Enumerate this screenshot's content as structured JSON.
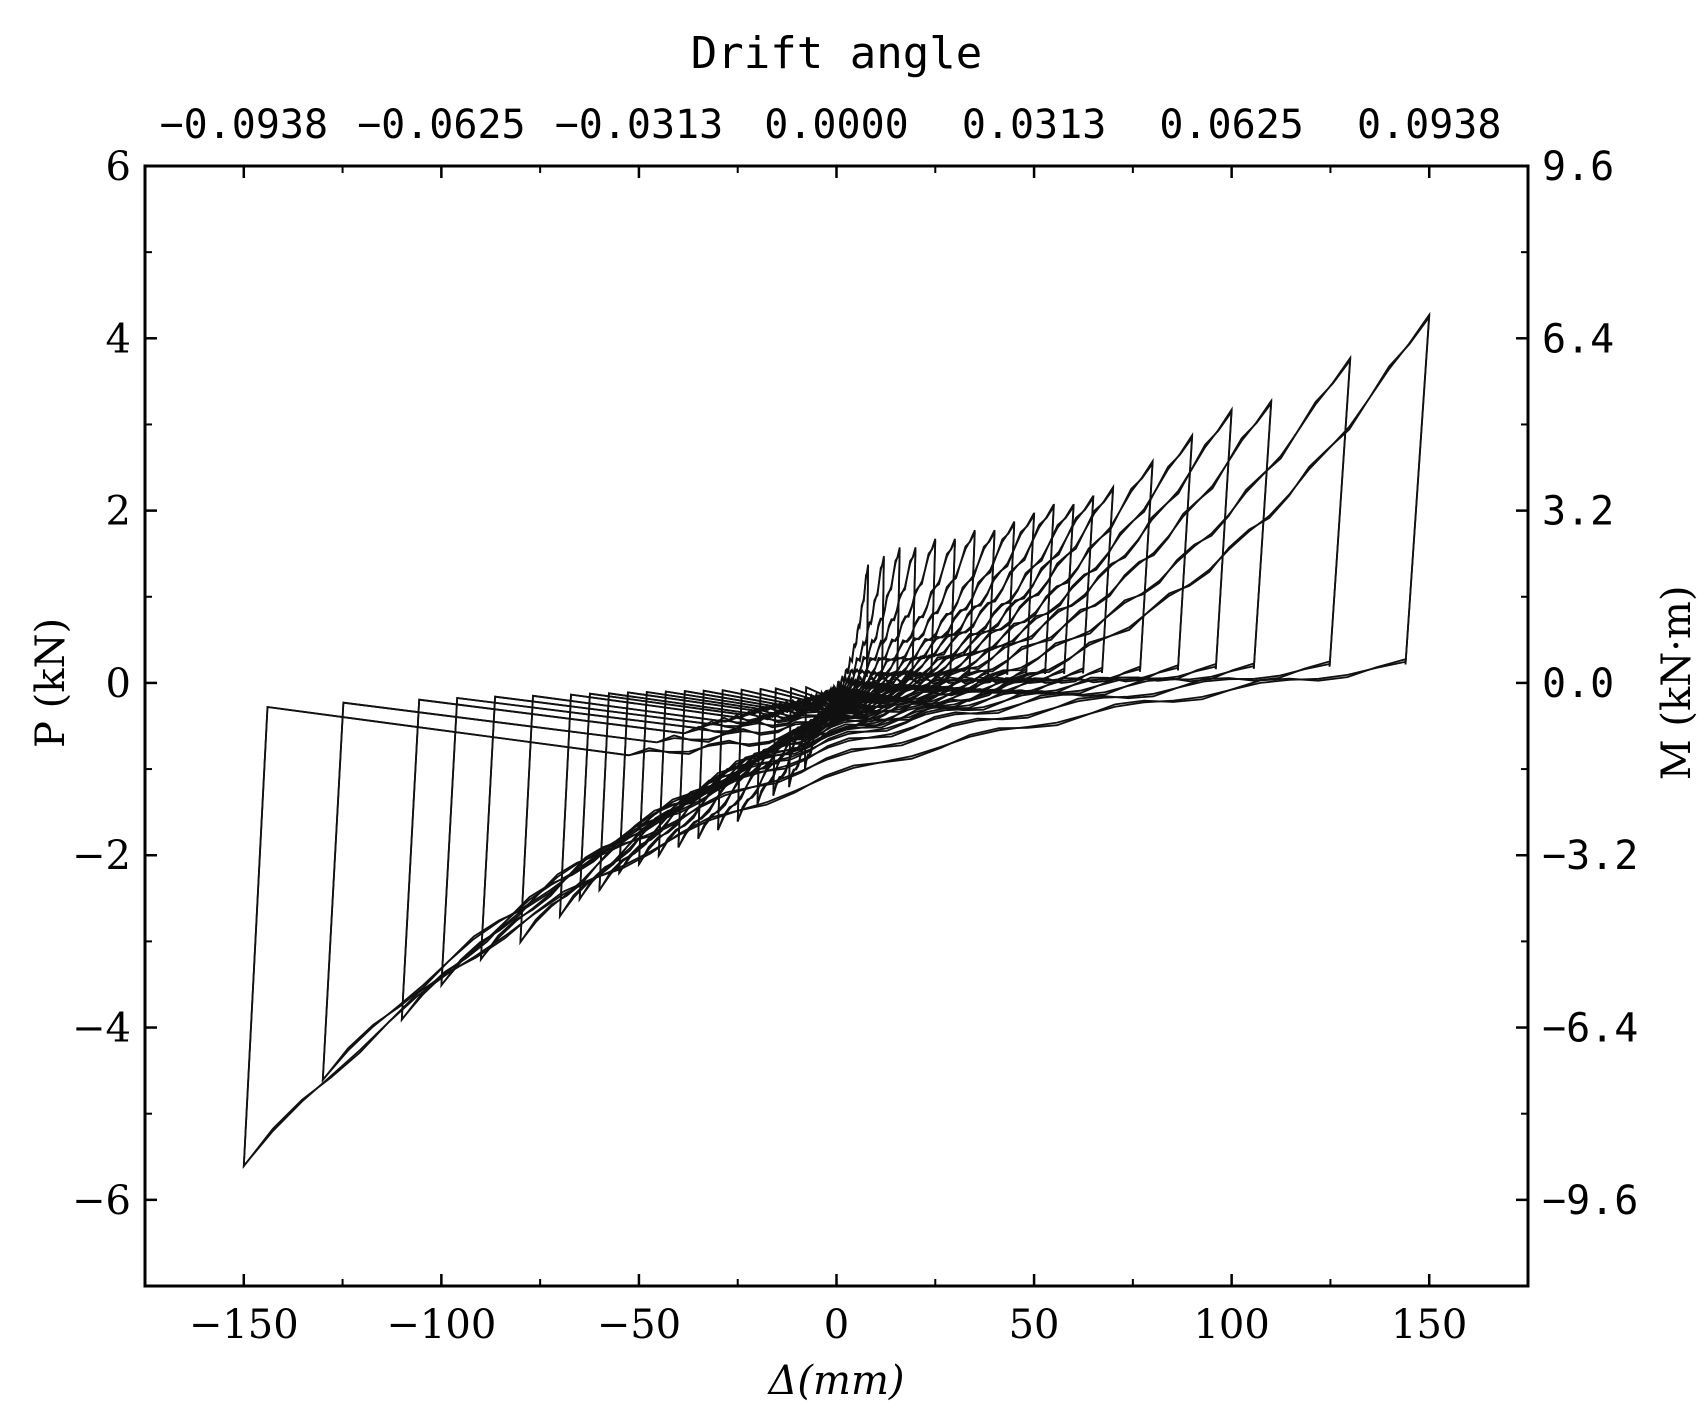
{
  "chart_data": {
    "type": "line",
    "title": "Drift angle",
    "xlabel": "Δ(mm)",
    "ylabel": "P (kN)",
    "y2label": "M (kN·m)",
    "xlim": [
      -175,
      175
    ],
    "ylim": [
      -7,
      6
    ],
    "x_ticks": [
      -150,
      -100,
      -50,
      0,
      50,
      100,
      150
    ],
    "x_tick_labels": [
      "−150",
      "−100",
      "−50",
      "0",
      "50",
      "100",
      "150"
    ],
    "y_ticks": [
      -6,
      -4,
      -2,
      0,
      2,
      4,
      6
    ],
    "y_tick_labels": [
      "−6",
      "−4",
      "−2",
      "0",
      "2",
      "4",
      "6"
    ],
    "y2_tick_labels": [
      "−9.6",
      "−6.4",
      "−3.2",
      "0.0",
      "3.2",
      "6.4",
      "9.6"
    ],
    "top_ticks": [
      -150,
      -100,
      -50,
      0,
      50,
      100,
      150
    ],
    "top_tick_labels": [
      "−0.0938",
      "−0.0625",
      "−0.0313",
      "0.0000",
      "0.0313",
      "0.0625",
      "0.0938"
    ],
    "series": [
      {
        "values_description": "hysteresis cycles",
        "cycles": [
          {
            "d_pos": 8,
            "p_pos": 1.4,
            "d_neg": -8,
            "p_neg": -1.0
          },
          {
            "d_pos": 12,
            "p_pos": 1.5,
            "d_neg": -12,
            "p_neg": -1.2
          },
          {
            "d_pos": 16,
            "p_pos": 1.6,
            "d_neg": -16,
            "p_neg": -1.3
          },
          {
            "d_pos": 20,
            "p_pos": 1.6,
            "d_neg": -20,
            "p_neg": -1.4
          },
          {
            "d_pos": 25,
            "p_pos": 1.7,
            "d_neg": -25,
            "p_neg": -1.6
          },
          {
            "d_pos": 30,
            "p_pos": 1.7,
            "d_neg": -30,
            "p_neg": -1.7
          },
          {
            "d_pos": 35,
            "p_pos": 1.8,
            "d_neg": -35,
            "p_neg": -1.8
          },
          {
            "d_pos": 40,
            "p_pos": 1.8,
            "d_neg": -40,
            "p_neg": -1.9
          },
          {
            "d_pos": 45,
            "p_pos": 1.9,
            "d_neg": -45,
            "p_neg": -2.0
          },
          {
            "d_pos": 50,
            "p_pos": 2.0,
            "d_neg": -50,
            "p_neg": -2.1
          },
          {
            "d_pos": 55,
            "p_pos": 2.1,
            "d_neg": -55,
            "p_neg": -2.2
          },
          {
            "d_pos": 60,
            "p_pos": 2.1,
            "d_neg": -60,
            "p_neg": -2.4
          },
          {
            "d_pos": 65,
            "p_pos": 2.2,
            "d_neg": -65,
            "p_neg": -2.5
          },
          {
            "d_pos": 70,
            "p_pos": 2.3,
            "d_neg": -70,
            "p_neg": -2.7
          },
          {
            "d_pos": 80,
            "p_pos": 2.6,
            "d_neg": -80,
            "p_neg": -3.0
          },
          {
            "d_pos": 90,
            "p_pos": 2.9,
            "d_neg": -90,
            "p_neg": -3.2
          },
          {
            "d_pos": 100,
            "p_pos": 3.2,
            "d_neg": -100,
            "p_neg": -3.5
          },
          {
            "d_pos": 110,
            "p_pos": 3.3,
            "d_neg": -110,
            "p_neg": -3.9
          },
          {
            "d_pos": 130,
            "p_pos": 3.8,
            "d_neg": -130,
            "p_neg": -4.6
          },
          {
            "d_pos": 150,
            "p_pos": 4.3,
            "d_neg": -150,
            "p_neg": -5.6
          }
        ]
      }
    ]
  }
}
